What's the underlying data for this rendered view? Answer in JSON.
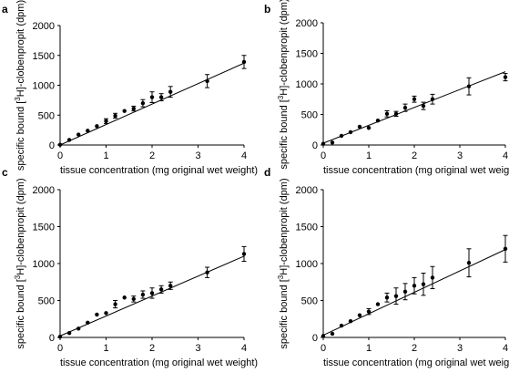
{
  "chart_data": [
    {
      "type": "scatter",
      "panel": "a",
      "xlabel": "tissue concentration (mg original wet weight)",
      "ylabel_prefix": "specific bound [",
      "ylabel_sup": "3",
      "ylabel_suffix": "H]-clobenpropit (dpm)",
      "xlim": [
        0,
        4
      ],
      "ylim": [
        0,
        2000
      ],
      "xticks": [
        "0",
        "1",
        "2",
        "3",
        "4"
      ],
      "yticks": [
        "0",
        "500",
        "1000",
        "1500",
        "2000"
      ],
      "fit": {
        "x": [
          0,
          4
        ],
        "y": [
          0,
          1370
        ]
      },
      "points": [
        {
          "x": 0.0,
          "y": 5,
          "err": 0
        },
        {
          "x": 0.2,
          "y": 85,
          "err": 0
        },
        {
          "x": 0.4,
          "y": 175,
          "err": 0
        },
        {
          "x": 0.6,
          "y": 240,
          "err": 0
        },
        {
          "x": 0.8,
          "y": 315,
          "err": 0
        },
        {
          "x": 1.0,
          "y": 400,
          "err": 40
        },
        {
          "x": 1.2,
          "y": 490,
          "err": 40
        },
        {
          "x": 1.4,
          "y": 570,
          "err": 0
        },
        {
          "x": 1.6,
          "y": 610,
          "err": 40
        },
        {
          "x": 1.8,
          "y": 700,
          "err": 60
        },
        {
          "x": 2.0,
          "y": 800,
          "err": 90
        },
        {
          "x": 2.2,
          "y": 800,
          "err": 60
        },
        {
          "x": 2.4,
          "y": 890,
          "err": 90
        },
        {
          "x": 3.2,
          "y": 1070,
          "err": 110
        },
        {
          "x": 4.0,
          "y": 1390,
          "err": 110
        }
      ]
    },
    {
      "type": "scatter",
      "panel": "b",
      "xlabel": "tissue concentration (mg original wet weight)",
      "ylabel_prefix": "specific bound [",
      "ylabel_sup": "3",
      "ylabel_suffix": "H]-clobenpropit (dpm)",
      "xlim": [
        0,
        4
      ],
      "ylim": [
        0,
        2000
      ],
      "xticks": [
        "0",
        "1",
        "2",
        "3",
        "4"
      ],
      "yticks": [
        "0",
        "500",
        "1000",
        "1500",
        "2000"
      ],
      "fit": {
        "x": [
          0,
          4
        ],
        "y": [
          30,
          1200
        ]
      },
      "points": [
        {
          "x": 0.0,
          "y": 20,
          "err": 0
        },
        {
          "x": 0.2,
          "y": 40,
          "err": 0
        },
        {
          "x": 0.4,
          "y": 150,
          "err": 0
        },
        {
          "x": 0.6,
          "y": 210,
          "err": 0
        },
        {
          "x": 0.8,
          "y": 300,
          "err": 0
        },
        {
          "x": 1.0,
          "y": 280,
          "err": 0
        },
        {
          "x": 1.2,
          "y": 400,
          "err": 0
        },
        {
          "x": 1.4,
          "y": 510,
          "err": 50
        },
        {
          "x": 1.6,
          "y": 510,
          "err": 40
        },
        {
          "x": 1.8,
          "y": 610,
          "err": 60
        },
        {
          "x": 2.0,
          "y": 750,
          "err": 50
        },
        {
          "x": 2.2,
          "y": 640,
          "err": 60
        },
        {
          "x": 2.4,
          "y": 750,
          "err": 80
        },
        {
          "x": 3.2,
          "y": 960,
          "err": 140
        },
        {
          "x": 4.0,
          "y": 1110,
          "err": 60
        }
      ]
    },
    {
      "type": "scatter",
      "panel": "c",
      "xlabel": "tissue concentration (mg original wet weight)",
      "ylabel_prefix": "specific bound [",
      "ylabel_sup": "3",
      "ylabel_suffix": "H]-clobenpropit (dpm)",
      "xlim": [
        0,
        4
      ],
      "ylim": [
        0,
        2000
      ],
      "xticks": [
        "0",
        "1",
        "2",
        "3",
        "4"
      ],
      "yticks": [
        "0",
        "500",
        "1000",
        "1500",
        "2000"
      ],
      "fit": {
        "x": [
          0,
          4
        ],
        "y": [
          20,
          1100
        ]
      },
      "points": [
        {
          "x": 0.0,
          "y": 10,
          "err": 0
        },
        {
          "x": 0.2,
          "y": 60,
          "err": 0
        },
        {
          "x": 0.4,
          "y": 120,
          "err": 0
        },
        {
          "x": 0.6,
          "y": 200,
          "err": 0
        },
        {
          "x": 0.8,
          "y": 310,
          "err": 0
        },
        {
          "x": 1.0,
          "y": 330,
          "err": 0
        },
        {
          "x": 1.2,
          "y": 450,
          "err": 50
        },
        {
          "x": 1.4,
          "y": 540,
          "err": 0
        },
        {
          "x": 1.6,
          "y": 520,
          "err": 40
        },
        {
          "x": 1.8,
          "y": 580,
          "err": 50
        },
        {
          "x": 2.0,
          "y": 600,
          "err": 70
        },
        {
          "x": 2.2,
          "y": 650,
          "err": 50
        },
        {
          "x": 2.4,
          "y": 700,
          "err": 50
        },
        {
          "x": 3.2,
          "y": 880,
          "err": 70
        },
        {
          "x": 4.0,
          "y": 1130,
          "err": 100
        }
      ]
    },
    {
      "type": "scatter",
      "panel": "d",
      "xlabel": "tissue concentration (mg original wet weight)",
      "ylabel_prefix": "specific bound [",
      "ylabel_sup": "3",
      "ylabel_suffix": "H]-clobenpropit (dpm)",
      "xlim": [
        0,
        4
      ],
      "ylim": [
        0,
        2000
      ],
      "xticks": [
        "0",
        "1",
        "2",
        "3",
        "4"
      ],
      "yticks": [
        "0",
        "500",
        "1000",
        "1500",
        "2000"
      ],
      "fit": {
        "x": [
          0,
          4
        ],
        "y": [
          30,
          1190
        ]
      },
      "points": [
        {
          "x": 0.0,
          "y": 20,
          "err": 0
        },
        {
          "x": 0.2,
          "y": 50,
          "err": 0
        },
        {
          "x": 0.4,
          "y": 160,
          "err": 0
        },
        {
          "x": 0.6,
          "y": 220,
          "err": 0
        },
        {
          "x": 0.8,
          "y": 300,
          "err": 0
        },
        {
          "x": 1.0,
          "y": 350,
          "err": 40
        },
        {
          "x": 1.2,
          "y": 450,
          "err": 0
        },
        {
          "x": 1.4,
          "y": 540,
          "err": 60
        },
        {
          "x": 1.6,
          "y": 560,
          "err": 110
        },
        {
          "x": 1.8,
          "y": 620,
          "err": 110
        },
        {
          "x": 2.0,
          "y": 700,
          "err": 110
        },
        {
          "x": 2.2,
          "y": 720,
          "err": 150
        },
        {
          "x": 2.4,
          "y": 810,
          "err": 150
        },
        {
          "x": 3.2,
          "y": 1010,
          "err": 190
        },
        {
          "x": 4.0,
          "y": 1200,
          "err": 180
        }
      ]
    }
  ]
}
